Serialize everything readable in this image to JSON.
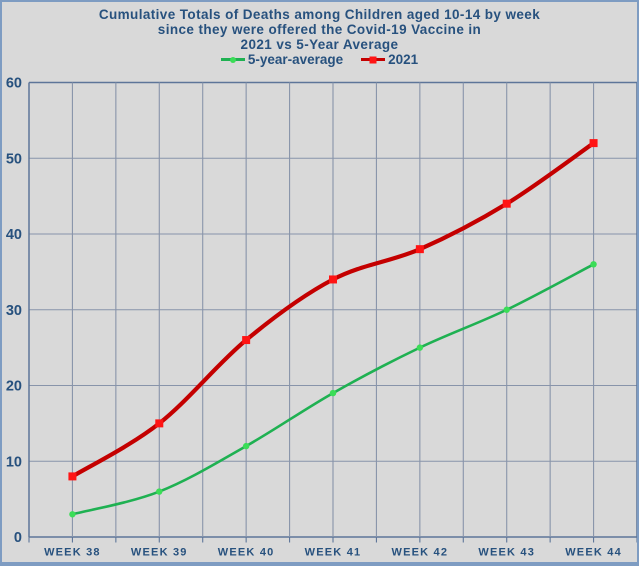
{
  "chart_data": {
    "type": "line",
    "title": "Cumulative Totals of Deaths among Children aged 10-14 by week since they were offered the Covid-19 Vaccine in 2021 vs 5-Year Average",
    "title_lines": [
      "Cumulative Totals of Deaths among Children aged 10-14 by week",
      "since they were offered the Covid-19 Vaccine in",
      "2021 vs 5-Year Average"
    ],
    "categories": [
      "WEEK 38",
      "WEEK 39",
      "WEEK 40",
      "WEEK 41",
      "WEEK 42",
      "WEEK 43",
      "WEEK 44"
    ],
    "series": [
      {
        "name": "5-year-average",
        "values": [
          3,
          6,
          12,
          19,
          25,
          30,
          36
        ],
        "line_color": "#1fb152",
        "marker_color": "#3bdd57",
        "marker": "circle",
        "line_width": 2.6
      },
      {
        "name": "2021",
        "values": [
          8,
          15,
          26,
          34,
          38,
          44,
          52
        ],
        "line_color": "#c40000",
        "marker_color": "#ff1414",
        "marker": "square",
        "line_width": 4.2
      }
    ],
    "xlabel": "",
    "ylabel": "",
    "ylim": [
      0,
      60
    ],
    "yticks": [
      0,
      10,
      20,
      30,
      40,
      50,
      60
    ],
    "grid": true,
    "minor_x_gridlines_per_interval": 2,
    "legend_position": "top",
    "colors": {
      "text": "#27517e",
      "grid": "#8894aa",
      "axis": "#5d7599",
      "background": "#d9d9d9",
      "frame_border": "#7e9cc2"
    }
  }
}
